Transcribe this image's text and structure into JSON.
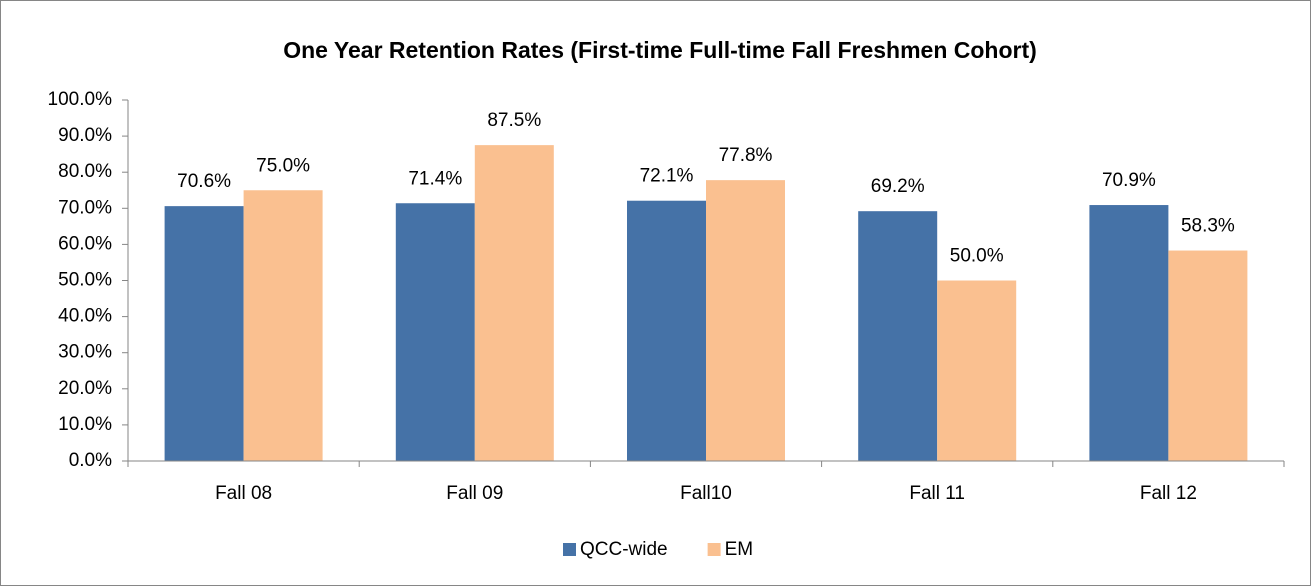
{
  "chart_data": {
    "type": "bar",
    "title": "One Year Retention Rates (First-time Full-time Fall Freshmen Cohort)",
    "categories": [
      "Fall 08",
      "Fall 09",
      "Fall10",
      "Fall 11",
      "Fall 12"
    ],
    "series": [
      {
        "name": "QCC-wide",
        "color": "#4572a7",
        "values": [
          70.6,
          71.4,
          72.1,
          69.2,
          70.9
        ],
        "value_labels": [
          "70.6%",
          "71.4%",
          "72.1%",
          "69.2%",
          "70.9%"
        ]
      },
      {
        "name": "EM",
        "color": "#fac090",
        "values": [
          75.0,
          87.5,
          77.8,
          50.0,
          58.3
        ],
        "value_labels": [
          "75.0%",
          "87.5%",
          "77.8%",
          "50.0%",
          "58.3%"
        ]
      }
    ],
    "ylim": [
      0,
      100
    ],
    "yticks": [
      {
        "value": 0,
        "label": "0.0%"
      },
      {
        "value": 10,
        "label": "10.0%"
      },
      {
        "value": 20,
        "label": "20.0%"
      },
      {
        "value": 30,
        "label": "30.0%"
      },
      {
        "value": 40,
        "label": "40.0%"
      },
      {
        "value": 50,
        "label": "50.0%"
      },
      {
        "value": 60,
        "label": "60.0%"
      },
      {
        "value": 70,
        "label": "70.0%"
      },
      {
        "value": 80,
        "label": "80.0%"
      },
      {
        "value": 90,
        "label": "90.0%"
      },
      {
        "value": 100,
        "label": "100.0%"
      }
    ],
    "grid": false,
    "legend": "bottom"
  }
}
